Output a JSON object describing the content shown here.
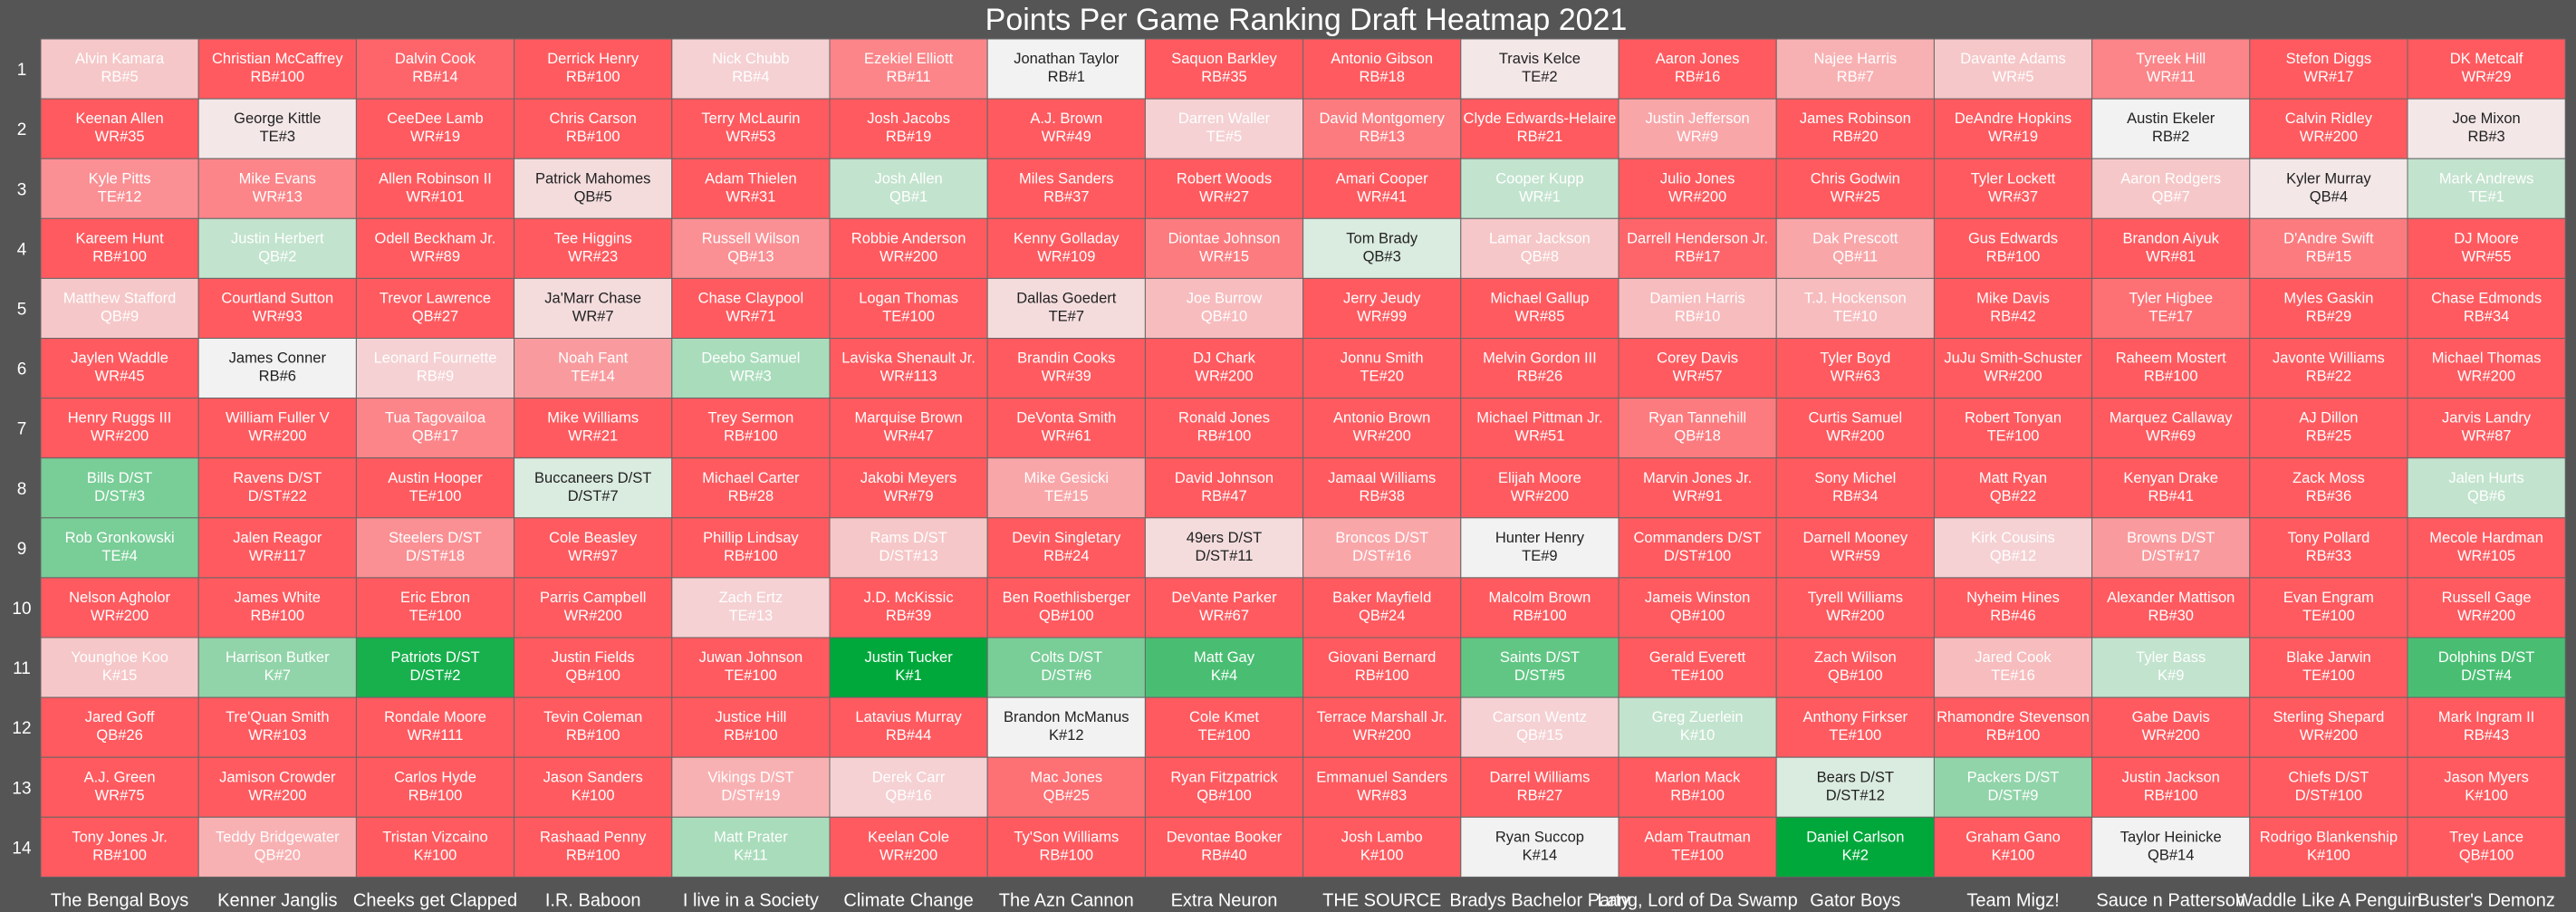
{
  "chart_data": {
    "type": "heatmap",
    "title": "Points Per Game Ranking Draft Heatmap 2021",
    "rows": [
      "1",
      "2",
      "3",
      "4",
      "5",
      "6",
      "7",
      "8",
      "9",
      "10",
      "11",
      "12",
      "13",
      "14"
    ],
    "teams": [
      "The Bengal  Boys",
      "Kenner Janglis",
      "Cheeks get  Clapped",
      "I.R. Baboon",
      "I live in a Society",
      "Climate Change",
      "The Azn Cannon",
      "Extra  Neuron",
      "THE SOURCE",
      "Bradys Bachelor Party",
      "Lang, Lord of Da Swamp",
      "Gator  Boys",
      "Team Migz!",
      "Sauce n Patterson",
      "Waddle Like A Penguin",
      "Buster's Demonz"
    ],
    "color_scale": {
      "best": "#00a83b",
      "neutral": "#f2f2f2",
      "worst": "#ff5a5f"
    },
    "picks": [
      [
        [
          "Alvin Kamara",
          "RB#5"
        ],
        [
          "Christian McCaffrey",
          "RB#100"
        ],
        [
          "Dalvin Cook",
          "RB#14"
        ],
        [
          "Derrick Henry",
          "RB#100"
        ],
        [
          "Nick Chubb",
          "RB#4"
        ],
        [
          "Ezekiel Elliott",
          "RB#11"
        ],
        [
          "Jonathan Taylor",
          "RB#1"
        ],
        [
          "Saquon Barkley",
          "RB#35"
        ],
        [
          "Antonio Gibson",
          "RB#18"
        ],
        [
          "Travis Kelce",
          "TE#2"
        ],
        [
          "Aaron Jones",
          "RB#16"
        ],
        [
          "Najee Harris",
          "RB#7"
        ],
        [
          "Davante Adams",
          "WR#5"
        ],
        [
          "Tyreek Hill",
          "WR#11"
        ],
        [
          "Stefon Diggs",
          "WR#17"
        ],
        [
          "DK Metcalf",
          "WR#29"
        ]
      ],
      [
        [
          "Keenan Allen",
          "WR#35"
        ],
        [
          "George Kittle",
          "TE#3"
        ],
        [
          "CeeDee Lamb",
          "WR#19"
        ],
        [
          "Chris Carson",
          "RB#100"
        ],
        [
          "Terry McLaurin",
          "WR#53"
        ],
        [
          "Josh Jacobs",
          "RB#19"
        ],
        [
          "A.J. Brown",
          "WR#49"
        ],
        [
          "Darren Waller",
          "TE#5"
        ],
        [
          "David Montgomery",
          "RB#13"
        ],
        [
          "Clyde Edwards-Helaire",
          "RB#21"
        ],
        [
          "Justin Jefferson",
          "WR#9"
        ],
        [
          "James Robinson",
          "RB#20"
        ],
        [
          "DeAndre Hopkins",
          "WR#19"
        ],
        [
          "Austin Ekeler",
          "RB#2"
        ],
        [
          "Calvin Ridley",
          "WR#200"
        ],
        [
          "Joe Mixon",
          "RB#3"
        ]
      ],
      [
        [
          "Kyle Pitts",
          "TE#12"
        ],
        [
          "Mike Evans",
          "WR#13"
        ],
        [
          "Allen Robinson II",
          "WR#101"
        ],
        [
          "Patrick Mahomes",
          "QB#5"
        ],
        [
          "Adam Thielen",
          "WR#31"
        ],
        [
          "Josh Allen",
          "QB#1"
        ],
        [
          "Miles Sanders",
          "RB#37"
        ],
        [
          "Robert Woods",
          "WR#27"
        ],
        [
          "Amari Cooper",
          "WR#41"
        ],
        [
          "Cooper Kupp",
          "WR#1"
        ],
        [
          "Julio Jones",
          "WR#200"
        ],
        [
          "Chris Godwin",
          "WR#25"
        ],
        [
          "Tyler Lockett",
          "WR#37"
        ],
        [
          "Aaron Rodgers",
          "QB#7"
        ],
        [
          "Kyler Murray",
          "QB#4"
        ],
        [
          "Mark Andrews",
          "TE#1"
        ]
      ],
      [
        [
          "Kareem Hunt",
          "RB#100"
        ],
        [
          "Justin Herbert",
          "QB#2"
        ],
        [
          "Odell Beckham Jr.",
          "WR#89"
        ],
        [
          "Tee Higgins",
          "WR#23"
        ],
        [
          "Russell Wilson",
          "QB#13"
        ],
        [
          "Robbie Anderson",
          "WR#200"
        ],
        [
          "Kenny Golladay",
          "WR#109"
        ],
        [
          "Diontae Johnson",
          "WR#15"
        ],
        [
          "Tom Brady",
          "QB#3"
        ],
        [
          "Lamar Jackson",
          "QB#8"
        ],
        [
          "Darrell Henderson Jr.",
          "RB#17"
        ],
        [
          "Dak Prescott",
          "QB#11"
        ],
        [
          "Gus Edwards",
          "RB#100"
        ],
        [
          "Brandon Aiyuk",
          "WR#81"
        ],
        [
          "D'Andre Swift",
          "RB#15"
        ],
        [
          "DJ Moore",
          "WR#55"
        ]
      ],
      [
        [
          "Matthew Stafford",
          "QB#9"
        ],
        [
          "Courtland Sutton",
          "WR#93"
        ],
        [
          "Trevor Lawrence",
          "QB#27"
        ],
        [
          "Ja'Marr Chase",
          "WR#7"
        ],
        [
          "Chase Claypool",
          "WR#71"
        ],
        [
          "Logan Thomas",
          "TE#100"
        ],
        [
          "Dallas Goedert",
          "TE#7"
        ],
        [
          "Joe Burrow",
          "QB#10"
        ],
        [
          "Jerry Jeudy",
          "WR#99"
        ],
        [
          "Michael Gallup",
          "WR#85"
        ],
        [
          "Damien Harris",
          "RB#10"
        ],
        [
          "T.J. Hockenson",
          "TE#10"
        ],
        [
          "Mike Davis",
          "RB#42"
        ],
        [
          "Tyler Higbee",
          "TE#17"
        ],
        [
          "Myles Gaskin",
          "RB#29"
        ],
        [
          "Chase Edmonds",
          "RB#34"
        ]
      ],
      [
        [
          "Jaylen Waddle",
          "WR#45"
        ],
        [
          "James Conner",
          "RB#6"
        ],
        [
          "Leonard Fournette",
          "RB#9"
        ],
        [
          "Noah Fant",
          "TE#14"
        ],
        [
          "Deebo Samuel",
          "WR#3"
        ],
        [
          "Laviska Shenault Jr.",
          "WR#113"
        ],
        [
          "Brandin Cooks",
          "WR#39"
        ],
        [
          "DJ Chark",
          "WR#200"
        ],
        [
          "Jonnu Smith",
          "TE#20"
        ],
        [
          "Melvin Gordon III",
          "RB#26"
        ],
        [
          "Corey Davis",
          "WR#57"
        ],
        [
          "Tyler Boyd",
          "WR#63"
        ],
        [
          "JuJu Smith-Schuster",
          "WR#200"
        ],
        [
          "Raheem Mostert",
          "RB#100"
        ],
        [
          "Javonte Williams",
          "RB#22"
        ],
        [
          "Michael Thomas",
          "WR#200"
        ]
      ],
      [
        [
          "Henry Ruggs III",
          "WR#200"
        ],
        [
          "William Fuller V",
          "WR#200"
        ],
        [
          "Tua Tagovailoa",
          "QB#17"
        ],
        [
          "Mike Williams",
          "WR#21"
        ],
        [
          "Trey Sermon",
          "RB#100"
        ],
        [
          "Marquise Brown",
          "WR#47"
        ],
        [
          "DeVonta Smith",
          "WR#61"
        ],
        [
          "Ronald Jones",
          "RB#100"
        ],
        [
          "Antonio Brown",
          "WR#200"
        ],
        [
          "Michael Pittman Jr.",
          "WR#51"
        ],
        [
          "Ryan Tannehill",
          "QB#18"
        ],
        [
          "Curtis Samuel",
          "WR#200"
        ],
        [
          "Robert Tonyan",
          "TE#100"
        ],
        [
          "Marquez Callaway",
          "WR#69"
        ],
        [
          "AJ Dillon",
          "RB#25"
        ],
        [
          "Jarvis Landry",
          "WR#87"
        ]
      ],
      [
        [
          "Bills D/ST",
          "D/ST#3"
        ],
        [
          "Ravens D/ST",
          "D/ST#22"
        ],
        [
          "Austin Hooper",
          "TE#100"
        ],
        [
          "Buccaneers D/ST",
          "D/ST#7"
        ],
        [
          "Michael Carter",
          "RB#28"
        ],
        [
          "Jakobi Meyers",
          "WR#79"
        ],
        [
          "Mike Gesicki",
          "TE#15"
        ],
        [
          "David Johnson",
          "RB#47"
        ],
        [
          "Jamaal Williams",
          "RB#38"
        ],
        [
          "Elijah Moore",
          "WR#200"
        ],
        [
          "Marvin Jones Jr.",
          "WR#91"
        ],
        [
          "Sony Michel",
          "RB#34"
        ],
        [
          "Matt Ryan",
          "QB#22"
        ],
        [
          "Kenyan Drake",
          "RB#41"
        ],
        [
          "Zack Moss",
          "RB#36"
        ],
        [
          "Jalen Hurts",
          "QB#6"
        ]
      ],
      [
        [
          "Rob Gronkowski",
          "TE#4"
        ],
        [
          "Jalen Reagor",
          "WR#117"
        ],
        [
          "Steelers D/ST",
          "D/ST#18"
        ],
        [
          "Cole Beasley",
          "WR#97"
        ],
        [
          "Phillip Lindsay",
          "RB#100"
        ],
        [
          "Rams D/ST",
          "D/ST#13"
        ],
        [
          "Devin Singletary",
          "RB#24"
        ],
        [
          "49ers D/ST",
          "D/ST#11"
        ],
        [
          "Broncos D/ST",
          "D/ST#16"
        ],
        [
          "Hunter Henry",
          "TE#9"
        ],
        [
          "Commanders D/ST",
          "D/ST#100"
        ],
        [
          "Darnell Mooney",
          "WR#59"
        ],
        [
          "Kirk Cousins",
          "QB#12"
        ],
        [
          "Browns D/ST",
          "D/ST#17"
        ],
        [
          "Tony Pollard",
          "RB#33"
        ],
        [
          "Mecole Hardman",
          "WR#105"
        ]
      ],
      [
        [
          "Nelson Agholor",
          "WR#200"
        ],
        [
          "James White",
          "RB#100"
        ],
        [
          "Eric Ebron",
          "TE#100"
        ],
        [
          "Parris Campbell",
          "WR#200"
        ],
        [
          "Zach Ertz",
          "TE#13"
        ],
        [
          "J.D. McKissic",
          "RB#39"
        ],
        [
          "Ben Roethlisberger",
          "QB#100"
        ],
        [
          "DeVante Parker",
          "WR#67"
        ],
        [
          "Baker Mayfield",
          "QB#24"
        ],
        [
          "Malcolm Brown",
          "RB#100"
        ],
        [
          "Jameis Winston",
          "QB#100"
        ],
        [
          "Tyrell Williams",
          "WR#200"
        ],
        [
          "Nyheim Hines",
          "RB#46"
        ],
        [
          "Alexander Mattison",
          "RB#30"
        ],
        [
          "Evan Engram",
          "TE#100"
        ],
        [
          "Russell Gage",
          "WR#200"
        ]
      ],
      [
        [
          "Younghoe Koo",
          "K#15"
        ],
        [
          "Harrison Butker",
          "K#7"
        ],
        [
          "Patriots D/ST",
          "D/ST#2"
        ],
        [
          "Justin Fields",
          "QB#100"
        ],
        [
          "Juwan Johnson",
          "TE#100"
        ],
        [
          "Justin Tucker",
          "K#1"
        ],
        [
          "Colts D/ST",
          "D/ST#6"
        ],
        [
          "Matt Gay",
          "K#4"
        ],
        [
          "Giovani Bernard",
          "RB#100"
        ],
        [
          "Saints D/ST",
          "D/ST#5"
        ],
        [
          "Gerald Everett",
          "TE#100"
        ],
        [
          "Zach Wilson",
          "QB#100"
        ],
        [
          "Jared Cook",
          "TE#16"
        ],
        [
          "Tyler Bass",
          "K#9"
        ],
        [
          "Blake Jarwin",
          "TE#100"
        ],
        [
          "Dolphins D/ST",
          "D/ST#4"
        ]
      ],
      [
        [
          "Jared Goff",
          "QB#26"
        ],
        [
          "Tre'Quan Smith",
          "WR#103"
        ],
        [
          "Rondale Moore",
          "WR#111"
        ],
        [
          "Tevin Coleman",
          "RB#100"
        ],
        [
          "Justice Hill",
          "RB#100"
        ],
        [
          "Latavius Murray",
          "RB#44"
        ],
        [
          "Brandon McManus",
          "K#12"
        ],
        [
          "Cole Kmet",
          "TE#100"
        ],
        [
          "Terrace Marshall Jr.",
          "WR#200"
        ],
        [
          "Carson Wentz",
          "QB#15"
        ],
        [
          "Greg Zuerlein",
          "K#10"
        ],
        [
          "Anthony Firkser",
          "TE#100"
        ],
        [
          "Rhamondre Stevenson",
          "RB#100"
        ],
        [
          "Gabe Davis",
          "WR#200"
        ],
        [
          "Sterling Shepard",
          "WR#200"
        ],
        [
          "Mark Ingram II",
          "RB#43"
        ]
      ],
      [
        [
          "A.J. Green",
          "WR#75"
        ],
        [
          "Jamison Crowder",
          "WR#200"
        ],
        [
          "Carlos Hyde",
          "RB#100"
        ],
        [
          "Jason Sanders",
          "K#100"
        ],
        [
          "Vikings D/ST",
          "D/ST#19"
        ],
        [
          "Derek Carr",
          "QB#16"
        ],
        [
          "Mac Jones",
          "QB#25"
        ],
        [
          "Ryan Fitzpatrick",
          "QB#100"
        ],
        [
          "Emmanuel Sanders",
          "WR#83"
        ],
        [
          "Darrel Williams",
          "RB#27"
        ],
        [
          "Marlon Mack",
          "RB#100"
        ],
        [
          "Bears D/ST",
          "D/ST#12"
        ],
        [
          "Packers D/ST",
          "D/ST#9"
        ],
        [
          "Justin Jackson",
          "RB#100"
        ],
        [
          "Chiefs D/ST",
          "D/ST#100"
        ],
        [
          "Jason Myers",
          "K#100"
        ]
      ],
      [
        [
          "Tony Jones Jr.",
          "RB#100"
        ],
        [
          "Teddy Bridgewater",
          "QB#20"
        ],
        [
          "Tristan Vizcaino",
          "K#100"
        ],
        [
          "Rashaad Penny",
          "RB#100"
        ],
        [
          "Matt Prater",
          "K#11"
        ],
        [
          "Keelan Cole",
          "WR#200"
        ],
        [
          "Ty'Son Williams",
          "RB#100"
        ],
        [
          "Devontae Booker",
          "RB#40"
        ],
        [
          "Josh Lambo",
          "K#100"
        ],
        [
          "Ryan Succop",
          "K#14"
        ],
        [
          "Adam Trautman",
          "TE#100"
        ],
        [
          "Daniel Carlson",
          "K#2"
        ],
        [
          "Graham Gano",
          "K#100"
        ],
        [
          "Taylor Heinicke",
          "QB#14"
        ],
        [
          "Rodrigo Blankenship",
          "K#100"
        ],
        [
          "Trey Lance",
          "QB#100"
        ]
      ]
    ]
  }
}
